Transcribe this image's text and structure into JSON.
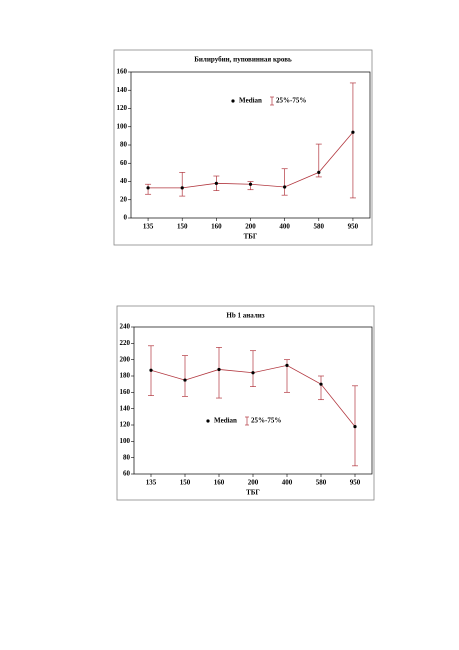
{
  "chart_data": [
    {
      "type": "errorline",
      "title": "Билирубин, пуповинная кровь",
      "x_label": "ТБГ",
      "categories": [
        "135",
        "150",
        "160",
        "200",
        "400",
        "580",
        "950"
      ],
      "series": [
        {
          "name": "Median",
          "color": "#000000",
          "line_color": "#b2373f",
          "values": [
            33,
            33,
            38,
            37,
            34,
            50,
            94
          ]
        },
        {
          "name": "25%-75%",
          "color": "#b2373f",
          "low": [
            26,
            24,
            30,
            31,
            25,
            45,
            22
          ],
          "high": [
            37,
            50,
            46,
            40,
            54,
            81,
            148
          ]
        }
      ],
      "ylim": [
        0,
        160
      ],
      "yticks": [
        0,
        20,
        40,
        60,
        80,
        100,
        120,
        140,
        160
      ],
      "grid": false
    },
    {
      "type": "errorline",
      "title": "Hb 1 анализ",
      "x_label": "ТБГ",
      "categories": [
        "135",
        "150",
        "160",
        "200",
        "400",
        "580",
        "950"
      ],
      "series": [
        {
          "name": "Median",
          "color": "#000000",
          "line_color": "#b2373f",
          "values": [
            187,
            175,
            188,
            184,
            193,
            170,
            118
          ]
        },
        {
          "name": "25%-75%",
          "color": "#b2373f",
          "low": [
            156,
            155,
            153,
            167,
            160,
            151,
            70
          ],
          "high": [
            217,
            205,
            215,
            211,
            200,
            180,
            168
          ]
        }
      ],
      "ylim": [
        60,
        240
      ],
      "yticks": [
        60,
        80,
        100,
        120,
        140,
        160,
        180,
        200,
        220,
        240
      ],
      "grid": false
    }
  ]
}
